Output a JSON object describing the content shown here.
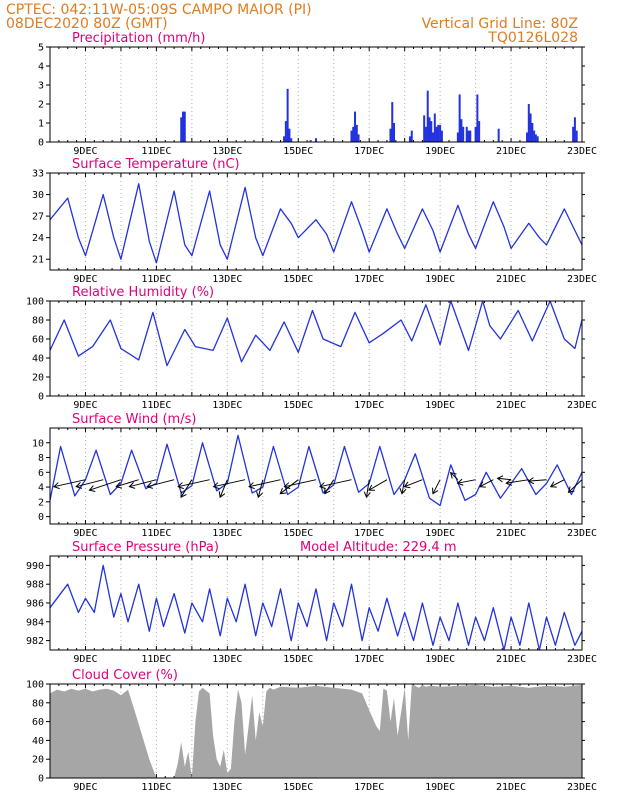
{
  "header": {
    "line1_left": "CPTEC:   042:11W-05:09S   CAMPO MAIOR (PI)",
    "line2_left": "08DEC2020 80Z (GMT)",
    "line2_right": "Vertical Grid Line: 80Z",
    "line3_right": "TQ0126L028"
  },
  "colors": {
    "series": "#2233dd",
    "cloud": "#a6a6a6",
    "title": "#e0007a",
    "header": "#e07b1f",
    "wind_arrow": "#000000"
  },
  "x_axis": {
    "start": "08DEC2020 00Z",
    "end": "23DEC2020 00Z",
    "ticks": [
      {
        "pos": 1,
        "label": "9DEC"
      },
      {
        "pos": 3,
        "label": "11DEC"
      },
      {
        "pos": 5,
        "label": "13DEC"
      },
      {
        "pos": 7,
        "label": "15DEC"
      },
      {
        "pos": 9,
        "label": "17DEC"
      },
      {
        "pos": 11,
        "label": "19DEC"
      },
      {
        "pos": 13,
        "label": "21DEC"
      },
      {
        "pos": 15,
        "label": "23DEC"
      }
    ]
  },
  "chart_data": [
    {
      "type": "bar",
      "id": "precip",
      "title": "Precipitation (mm/h)",
      "ylim": [
        0,
        5
      ],
      "yticks": [
        "0",
        "1",
        "2",
        "3",
        "4",
        "5"
      ],
      "x_range": [
        0,
        15
      ],
      "bars": [
        {
          "x": 3.7,
          "v": 1.3
        },
        {
          "x": 3.75,
          "v": 1.6
        },
        {
          "x": 3.8,
          "v": 1.6
        },
        {
          "x": 6.6,
          "v": 0.3
        },
        {
          "x": 6.65,
          "v": 1.1
        },
        {
          "x": 6.7,
          "v": 2.8
        },
        {
          "x": 6.75,
          "v": 0.7
        },
        {
          "x": 6.8,
          "v": 0.2
        },
        {
          "x": 7.35,
          "v": 0.1
        },
        {
          "x": 7.5,
          "v": 0.2
        },
        {
          "x": 8.5,
          "v": 0.6
        },
        {
          "x": 8.55,
          "v": 0.8
        },
        {
          "x": 8.6,
          "v": 1.6
        },
        {
          "x": 8.65,
          "v": 0.9
        },
        {
          "x": 8.7,
          "v": 0.4
        },
        {
          "x": 9.6,
          "v": 0.7
        },
        {
          "x": 9.65,
          "v": 2.1
        },
        {
          "x": 9.7,
          "v": 1.0
        },
        {
          "x": 10.15,
          "v": 0.3
        },
        {
          "x": 10.2,
          "v": 0.6
        },
        {
          "x": 10.55,
          "v": 1.4
        },
        {
          "x": 10.6,
          "v": 0.8
        },
        {
          "x": 10.65,
          "v": 2.7
        },
        {
          "x": 10.7,
          "v": 1.3
        },
        {
          "x": 10.75,
          "v": 1.1
        },
        {
          "x": 10.8,
          "v": 0.5
        },
        {
          "x": 10.85,
          "v": 1.5
        },
        {
          "x": 10.9,
          "v": 0.8
        },
        {
          "x": 10.95,
          "v": 0.9
        },
        {
          "x": 11.0,
          "v": 0.9
        },
        {
          "x": 11.05,
          "v": 0.6
        },
        {
          "x": 11.5,
          "v": 0.5
        },
        {
          "x": 11.55,
          "v": 2.5
        },
        {
          "x": 11.6,
          "v": 1.2
        },
        {
          "x": 11.65,
          "v": 0.8
        },
        {
          "x": 11.75,
          "v": 0.8
        },
        {
          "x": 11.8,
          "v": 0.6
        },
        {
          "x": 11.85,
          "v": 0.6
        },
        {
          "x": 12.0,
          "v": 0.8
        },
        {
          "x": 12.05,
          "v": 2.5
        },
        {
          "x": 12.1,
          "v": 1.1
        },
        {
          "x": 12.65,
          "v": 0.7
        },
        {
          "x": 13.45,
          "v": 0.5
        },
        {
          "x": 13.5,
          "v": 2.0
        },
        {
          "x": 13.55,
          "v": 1.5
        },
        {
          "x": 13.6,
          "v": 1.0
        },
        {
          "x": 13.65,
          "v": 0.6
        },
        {
          "x": 13.7,
          "v": 0.4
        },
        {
          "x": 13.75,
          "v": 0.3
        },
        {
          "x": 14.75,
          "v": 0.8
        },
        {
          "x": 14.8,
          "v": 1.3
        },
        {
          "x": 14.85,
          "v": 0.6
        }
      ]
    },
    {
      "type": "line",
      "id": "temp",
      "title": "Surface Temperature (nC)",
      "ylim": [
        19.5,
        33
      ],
      "yticks": [
        "21",
        "24",
        "27",
        "30",
        "33"
      ],
      "x": [
        0,
        0.5,
        0.8,
        1,
        1.5,
        1.8,
        2,
        2.5,
        2.8,
        3,
        3.5,
        3.8,
        4,
        4.5,
        4.8,
        5,
        5.5,
        5.8,
        6,
        6.5,
        6.8,
        7,
        7.5,
        7.8,
        8,
        8.5,
        8.8,
        9,
        9.5,
        9.8,
        10,
        10.5,
        10.8,
        11,
        11.5,
        11.8,
        12,
        12.5,
        12.8,
        13,
        13.5,
        13.8,
        14,
        14.5,
        14.8,
        15
      ],
      "values": [
        26.5,
        29.5,
        24,
        21.5,
        30,
        24,
        21,
        31.5,
        23.5,
        20.5,
        30.5,
        23,
        21.5,
        30.5,
        23,
        21,
        31,
        24,
        21.5,
        28,
        26,
        24,
        26.5,
        24.5,
        22,
        29,
        25,
        22,
        28,
        24.5,
        22.5,
        28,
        25,
        22,
        28.5,
        24.5,
        22.5,
        29,
        25.5,
        22.5,
        26,
        24,
        23,
        28,
        25,
        23
      ]
    },
    {
      "type": "line",
      "id": "rh",
      "title": "Relative Humidity (%)",
      "ylim": [
        0,
        100
      ],
      "yticks": [
        "0",
        "20",
        "40",
        "60",
        "80",
        "100"
      ],
      "x": [
        0,
        0.4,
        0.8,
        1.2,
        1.7,
        2,
        2.5,
        2.9,
        3.3,
        3.8,
        4.1,
        4.6,
        5,
        5.4,
        5.8,
        6.2,
        6.6,
        7,
        7.4,
        7.7,
        8.2,
        8.6,
        9,
        9.4,
        9.9,
        10.2,
        10.6,
        11,
        11.3,
        11.8,
        12.2,
        12.4,
        12.7,
        13.2,
        13.6,
        14.1,
        14.5,
        14.8,
        15
      ],
      "values": [
        48,
        80,
        42,
        52,
        80,
        50,
        38,
        88,
        32,
        70,
        52,
        48,
        82,
        36,
        64,
        48,
        78,
        46,
        90,
        60,
        52,
        88,
        56,
        66,
        80,
        58,
        96,
        54,
        100,
        48,
        100,
        74,
        60,
        90,
        58,
        100,
        60,
        50,
        80
      ]
    },
    {
      "type": "line",
      "id": "wind",
      "title": "Surface Wind (m/s)",
      "ylim": [
        -1,
        12
      ],
      "yticks": [
        "0",
        "2",
        "4",
        "6",
        "8",
        "10"
      ],
      "x": [
        0,
        0.3,
        0.7,
        1.0,
        1.3,
        1.7,
        2.0,
        2.3,
        2.7,
        3.0,
        3.3,
        3.7,
        4.0,
        4.3,
        4.7,
        5.0,
        5.3,
        5.7,
        6.0,
        6.3,
        6.7,
        7.0,
        7.3,
        7.7,
        8.0,
        8.3,
        8.7,
        9.0,
        9.3,
        9.7,
        10.0,
        10.3,
        10.7,
        11.0,
        11.3,
        11.7,
        12.0,
        12.3,
        12.7,
        13.0,
        13.3,
        13.7,
        14.0,
        14.3,
        14.7,
        15
      ],
      "values": [
        2.2,
        9.5,
        2.8,
        5.0,
        9.0,
        3.0,
        4.5,
        9.0,
        3.8,
        4.5,
        9.8,
        3.2,
        4.2,
        10.0,
        3.5,
        4.5,
        11.0,
        3.2,
        4.0,
        9.5,
        3.0,
        4.0,
        9.5,
        3.2,
        4.3,
        9.5,
        3.3,
        4.5,
        9.5,
        3.0,
        5.0,
        8.5,
        2.5,
        1.5,
        7.0,
        2.2,
        3.0,
        6.0,
        2.5,
        4.5,
        6.5,
        3.0,
        4.5,
        7.0,
        3.0,
        6.0
      ]
    },
    {
      "type": "line",
      "id": "pres",
      "title": "Surface Pressure (hPa)",
      "subtitle": "Model Altitude: 229.4 m",
      "ylim": [
        981,
        991
      ],
      "yticks": [
        "982",
        "984",
        "986",
        "988",
        "990"
      ],
      "x": [
        0,
        0.5,
        0.8,
        1,
        1.25,
        1.5,
        1.8,
        2,
        2.2,
        2.5,
        2.8,
        3,
        3.2,
        3.5,
        3.8,
        4,
        4.3,
        4.5,
        4.8,
        5,
        5.25,
        5.5,
        5.8,
        6,
        6.25,
        6.5,
        6.8,
        7,
        7.25,
        7.5,
        7.8,
        8,
        8.25,
        8.5,
        8.8,
        9,
        9.25,
        9.5,
        9.8,
        10,
        10.25,
        10.5,
        10.8,
        11,
        11.25,
        11.5,
        11.8,
        12,
        12.25,
        12.5,
        12.8,
        13,
        13.25,
        13.5,
        13.8,
        14,
        14.25,
        14.5,
        14.8,
        15
      ],
      "values": [
        985.5,
        988,
        985,
        986.5,
        985,
        990,
        984.5,
        987,
        984,
        988,
        983,
        986.5,
        983.5,
        987,
        982.8,
        986,
        984,
        987.5,
        982.5,
        986.5,
        984,
        988,
        982.5,
        986,
        983.5,
        987.5,
        982,
        986,
        983.5,
        987.5,
        982,
        986,
        983.5,
        988,
        982,
        985.5,
        983,
        986.5,
        982.5,
        985,
        982,
        986,
        981.5,
        984.5,
        982,
        986,
        981.5,
        984.5,
        982,
        985.5,
        981,
        984.5,
        981.5,
        986,
        981,
        984.5,
        981.5,
        985,
        981.5,
        983
      ]
    },
    {
      "type": "area",
      "id": "cloud",
      "title": "Cloud Cover (%)",
      "ylim": [
        0,
        100
      ],
      "yticks": [
        "0",
        "20",
        "40",
        "60",
        "80",
        "100"
      ],
      "x": [
        0,
        0.2,
        0.4,
        0.6,
        0.8,
        1.0,
        1.2,
        1.4,
        1.6,
        1.8,
        2.0,
        2.2,
        2.4,
        2.6,
        2.8,
        2.95,
        3.0,
        3.5,
        3.6,
        3.7,
        3.8,
        3.9,
        4.0,
        4.1,
        4.2,
        4.3,
        4.4,
        4.5,
        4.6,
        4.7,
        4.8,
        4.9,
        5.0,
        5.1,
        5.2,
        5.3,
        5.4,
        5.5,
        5.6,
        5.7,
        5.8,
        5.9,
        6.0,
        6.1,
        6.2,
        6.3,
        6.5,
        7.0,
        7.5,
        8.0,
        8.5,
        8.8,
        9.0,
        9.2,
        9.3,
        9.4,
        9.5,
        9.6,
        9.7,
        9.8,
        9.9,
        10.0,
        10.1,
        10.2,
        10.3,
        10.4,
        10.5,
        10.6,
        10.7,
        10.8,
        11.0,
        11.5,
        12.0,
        12.5,
        13.0,
        13.5,
        14.0,
        14.5,
        15.0
      ],
      "values": [
        90,
        94,
        92,
        95,
        93,
        95,
        92,
        94,
        95,
        93,
        88,
        94,
        70,
        45,
        20,
        5,
        0,
        0,
        15,
        38,
        12,
        28,
        0,
        60,
        92,
        96,
        93,
        90,
        45,
        20,
        12,
        30,
        5,
        10,
        60,
        94,
        80,
        25,
        55,
        88,
        40,
        70,
        55,
        92,
        96,
        94,
        97,
        96,
        98,
        96,
        94,
        90,
        72,
        55,
        50,
        95,
        93,
        60,
        85,
        45,
        70,
        96,
        40,
        100,
        98,
        96,
        99,
        97,
        98,
        98,
        97,
        98,
        99,
        97,
        98,
        96,
        98,
        97,
        99
      ]
    }
  ],
  "wind_arrows": {
    "x": [
      1.0,
      1.5,
      2.0,
      2.5,
      3.0,
      3.5,
      4.0,
      4.5,
      5.0,
      5.5,
      6.0,
      6.5,
      7.0,
      7.5,
      8.0,
      8.5,
      9.0,
      9.5,
      10.0,
      10.5,
      11.0,
      11.5,
      12.0,
      12.5,
      13.0,
      13.5,
      14.0,
      14.5,
      15.0
    ],
    "dx": [
      -3.5,
      -3,
      -3.5,
      -2.5,
      -3,
      -3,
      -1.2,
      -3.5,
      -0.8,
      -3.5,
      -0.5,
      -3.5,
      -2,
      -3.5,
      -1,
      -3.5,
      -0.3,
      -2,
      -0.3,
      -2,
      -0.8,
      -0.8,
      -2,
      -1.5,
      -1.5,
      -2.5,
      -2,
      -1.5,
      -1.5
    ],
    "dy": [
      -1,
      -1,
      -1.5,
      -1,
      -1,
      -1,
      -2.5,
      -1,
      -2.5,
      -1,
      -2.5,
      -1,
      -2,
      -1,
      -2,
      -1,
      -2.5,
      -1.5,
      -2,
      -1,
      -2,
      1,
      -0.5,
      -1,
      0.2,
      -0.5,
      -0.2,
      -1,
      -1.8
    ]
  }
}
